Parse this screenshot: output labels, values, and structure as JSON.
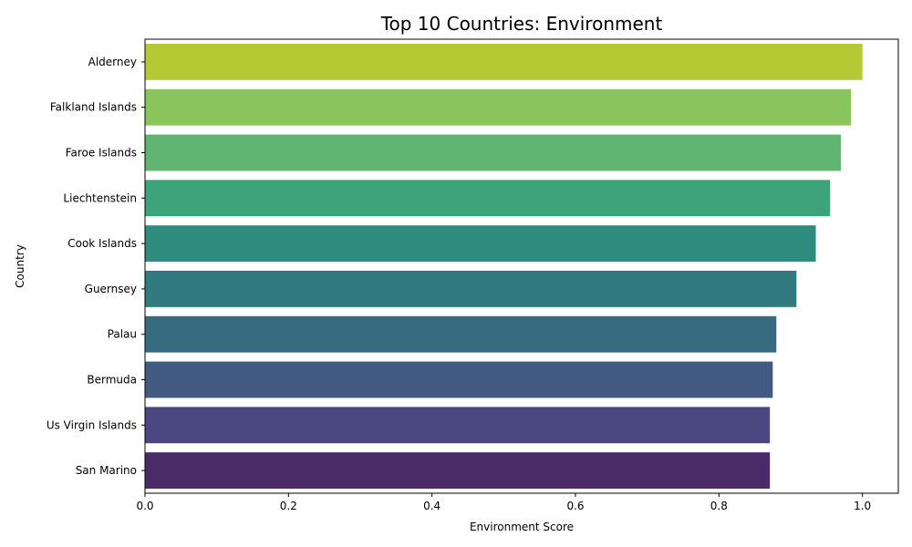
{
  "chart_data": {
    "type": "bar",
    "orientation": "horizontal",
    "title": "Top 10 Countries: Environment",
    "xlabel": "Environment Score",
    "ylabel": "Country",
    "xlim": [
      0,
      1.05
    ],
    "xticks": [
      "0.0",
      "0.2",
      "0.4",
      "0.6",
      "0.8",
      "1.0"
    ],
    "grid": false,
    "categories": [
      "Alderney",
      "Falkland Islands",
      "Faroe Islands",
      "Liechtenstein",
      "Cook Islands",
      "Guernsey",
      "Palau",
      "Bermuda",
      "Us Virgin Islands",
      "San Marino"
    ],
    "values": [
      1.0,
      0.984,
      0.97,
      0.955,
      0.935,
      0.908,
      0.88,
      0.875,
      0.871,
      0.871
    ],
    "colors": [
      "#b5c935",
      "#89c45c",
      "#60b671",
      "#3ea37a",
      "#2e8c7e",
      "#307a80",
      "#376b80",
      "#435b82",
      "#4b4781",
      "#482b67"
    ]
  }
}
